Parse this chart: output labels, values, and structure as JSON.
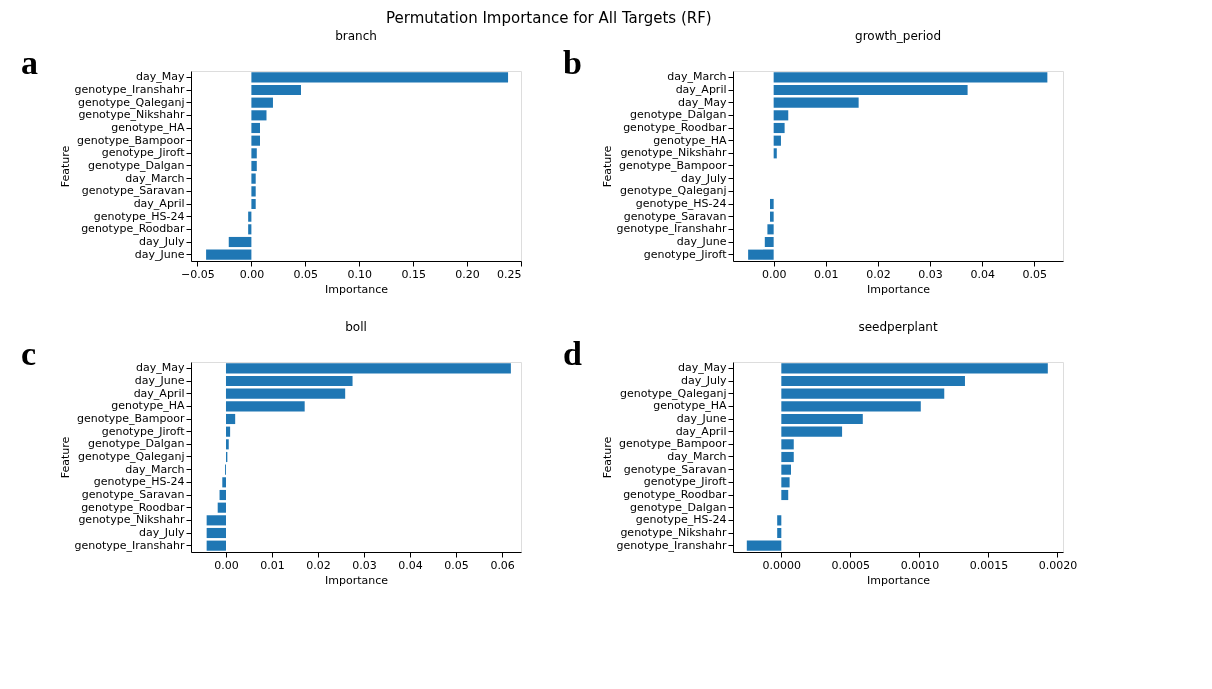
{
  "chart_data": [
    {
      "type": "bar",
      "orientation": "horizontal",
      "title": "branch",
      "xlabel": "Importance",
      "ylabel": "Feature",
      "annotations": [
        "Permutation Importance for All Targets (RF)",
        "a"
      ],
      "grid": false,
      "categories": [
        "day_May",
        "genotype_Iranshahr",
        "genotype_Qaleganj",
        "genotype_Nikshahr",
        "genotype_HA",
        "genotype_Bampoor",
        "genotype_Jiroft",
        "genotype_Dalgan",
        "day_March",
        "genotype_Saravan",
        "day_April",
        "genotype_HS-24",
        "genotype_Roodbar",
        "day_July",
        "day_June"
      ],
      "values": [
        0.238,
        0.046,
        0.02,
        0.014,
        0.008,
        0.008,
        0.005,
        0.005,
        0.004,
        0.004,
        0.004,
        -0.003,
        -0.003,
        -0.021,
        -0.042
      ],
      "color": "#1f77b4",
      "xlim": [
        -0.056,
        0.25
      ],
      "xticks": [
        {
          "value": -0.05,
          "label": "−0.05"
        },
        {
          "value": 0,
          "label": "0.00"
        },
        0.05,
        {
          "value": 0.1,
          "label": "0.10"
        },
        0.15,
        {
          "value": 0.2,
          "label": "0.20"
        },
        0.25
      ]
    },
    {
      "type": "bar",
      "orientation": "horizontal",
      "title": "growth_period",
      "xlabel": "Importance",
      "ylabel": "Feature",
      "annotations": [
        "b"
      ],
      "grid": false,
      "categories": [
        "day_March",
        "day_April",
        "day_May",
        "genotype_Dalgan",
        "genotype_Roodbar",
        "genotype_HA",
        "genotype_Nikshahr",
        "genotype_Bampoor",
        "day_July",
        "genotype_Qaleganj",
        "genotype_HS-24",
        "genotype_Saravan",
        "genotype_Iranshahr",
        "day_June",
        "genotype_Jiroft"
      ],
      "values": [
        0.0525,
        0.0372,
        0.0163,
        0.0028,
        0.0021,
        0.0014,
        0.0006,
        0,
        0,
        0,
        -0.0007,
        -0.0007,
        -0.0012,
        -0.0017,
        -0.0049
      ],
      "color": "#1f77b4",
      "xlim": [
        -0.0078,
        0.0555
      ],
      "xticks": [
        {
          "value": 0,
          "label": "0.00"
        },
        0.01,
        0.02,
        0.03,
        0.04,
        0.05
      ]
    },
    {
      "type": "bar",
      "orientation": "horizontal",
      "title": "boll",
      "xlabel": "Importance",
      "ylabel": "Feature",
      "annotations": [
        "c"
      ],
      "grid": false,
      "categories": [
        "day_May",
        "day_June",
        "day_April",
        "genotype_HA",
        "genotype_Bampoor",
        "genotype_Jiroft",
        "genotype_Dalgan",
        "genotype_Qaleganj",
        "day_March",
        "genotype_HS-24",
        "genotype_Saravan",
        "genotype_Roodbar",
        "genotype_Nikshahr",
        "day_July",
        "genotype_Iranshahr"
      ],
      "values": [
        0.0619,
        0.0275,
        0.0259,
        0.0171,
        0.002,
        0.0009,
        0.0006,
        0.0003,
        -0.0002,
        -0.0008,
        -0.0014,
        -0.0018,
        -0.0042,
        -0.0042,
        -0.0042
      ],
      "color": "#1f77b4",
      "xlim": [
        -0.0076,
        0.0641
      ],
      "xticks": [
        {
          "value": 0,
          "label": "0.00"
        },
        0.01,
        0.02,
        0.03,
        0.04,
        0.05,
        0.06
      ]
    },
    {
      "type": "bar",
      "orientation": "horizontal",
      "title": "seedperplant",
      "xlabel": "Importance",
      "ylabel": "Feature",
      "annotations": [
        "d"
      ],
      "grid": false,
      "categories": [
        "day_May",
        "day_July",
        "genotype_Qaleganj",
        "genotype_HA",
        "day_June",
        "day_April",
        "genotype_Bampoor",
        "day_March",
        "genotype_Saravan",
        "genotype_Jiroft",
        "genotype_Roodbar",
        "genotype_Dalgan",
        "genotype_HS-24",
        "genotype_Nikshahr",
        "genotype_Iranshahr"
      ],
      "values": [
        0.00193,
        0.00133,
        0.00118,
        0.00101,
        0.00059,
        0.00044,
        9e-05,
        9e-05,
        7e-05,
        6e-05,
        5e-05,
        0,
        -3e-05,
        -3e-05,
        -0.00025
      ],
      "color": "#1f77b4",
      "xlim": [
        -0.00035,
        0.00204
      ],
      "xticks": [
        {
          "value": 0,
          "label": "0.0000"
        },
        0.0005,
        {
          "value": 0.001,
          "label": "0.0010"
        },
        0.0015,
        {
          "value": 0.002,
          "label": "0.0020"
        }
      ]
    }
  ]
}
